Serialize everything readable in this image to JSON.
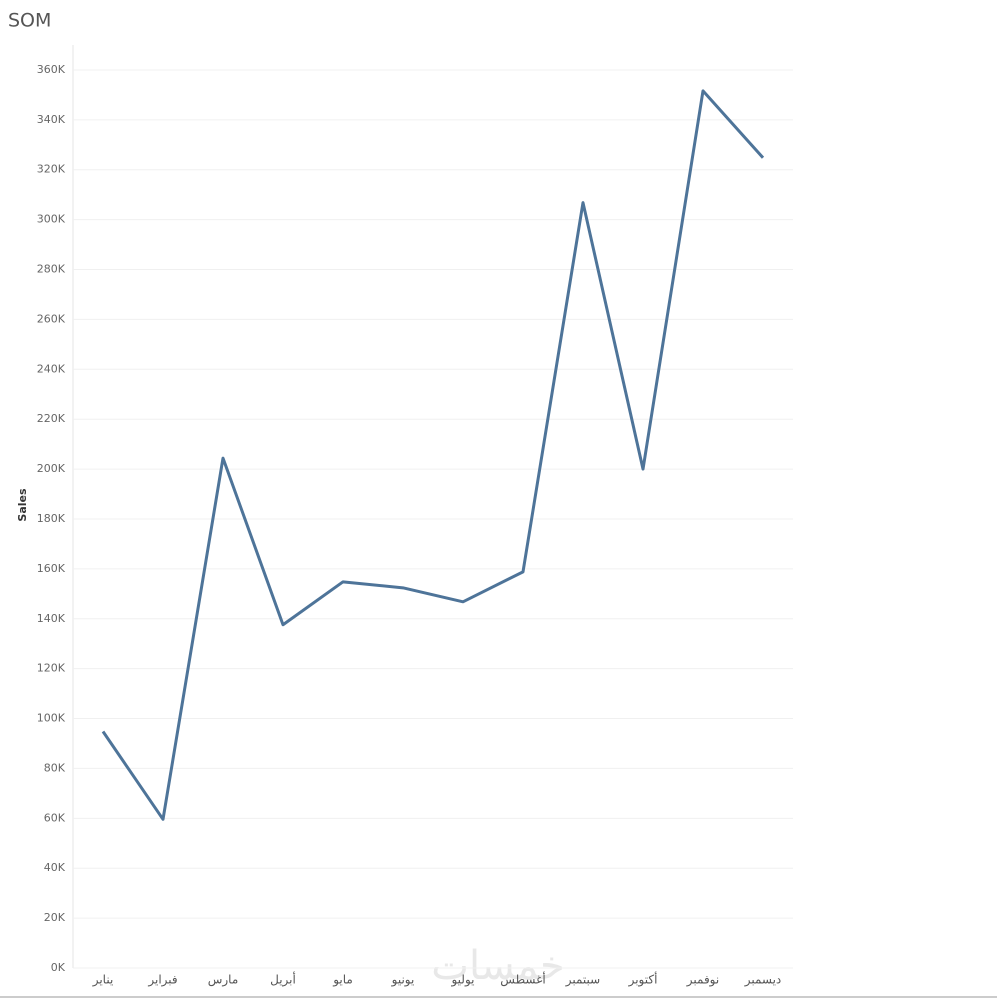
{
  "chart_data": {
    "type": "line",
    "title": "SOM",
    "y_label": "Sales",
    "watermark": "خمسات",
    "categories": [
      "يناير",
      "فبراير",
      "مارس",
      "أبريل",
      "مايو",
      "يونيو",
      "يوليو",
      "أغسطس",
      "سبتمبر",
      "أكتوبر",
      "نوفمبر",
      "ديسمبر"
    ],
    "series": [
      {
        "name": "Sales",
        "color": "#4e7499",
        "values": [
          94800,
          59600,
          204400,
          137600,
          154800,
          152400,
          146800,
          158800,
          306800,
          200000,
          351600,
          324800
        ]
      }
    ],
    "ylim": [
      0,
      370000
    ],
    "yticks": [
      {
        "value": 0,
        "label": "0K"
      },
      {
        "value": 20000,
        "label": "20K"
      },
      {
        "value": 40000,
        "label": "40K"
      },
      {
        "value": 60000,
        "label": "60K"
      },
      {
        "value": 80000,
        "label": "80K"
      },
      {
        "value": 100000,
        "label": "100K"
      },
      {
        "value": 120000,
        "label": "120K"
      },
      {
        "value": 140000,
        "label": "140K"
      },
      {
        "value": 160000,
        "label": "160K"
      },
      {
        "value": 180000,
        "label": "180K"
      },
      {
        "value": 200000,
        "label": "200K"
      },
      {
        "value": 220000,
        "label": "220K"
      },
      {
        "value": 240000,
        "label": "240K"
      },
      {
        "value": 260000,
        "label": "260K"
      },
      {
        "value": 280000,
        "label": "280K"
      },
      {
        "value": 300000,
        "label": "300K"
      },
      {
        "value": 320000,
        "label": "320K"
      },
      {
        "value": 340000,
        "label": "340K"
      },
      {
        "value": 360000,
        "label": "360K"
      }
    ],
    "grid": true
  }
}
